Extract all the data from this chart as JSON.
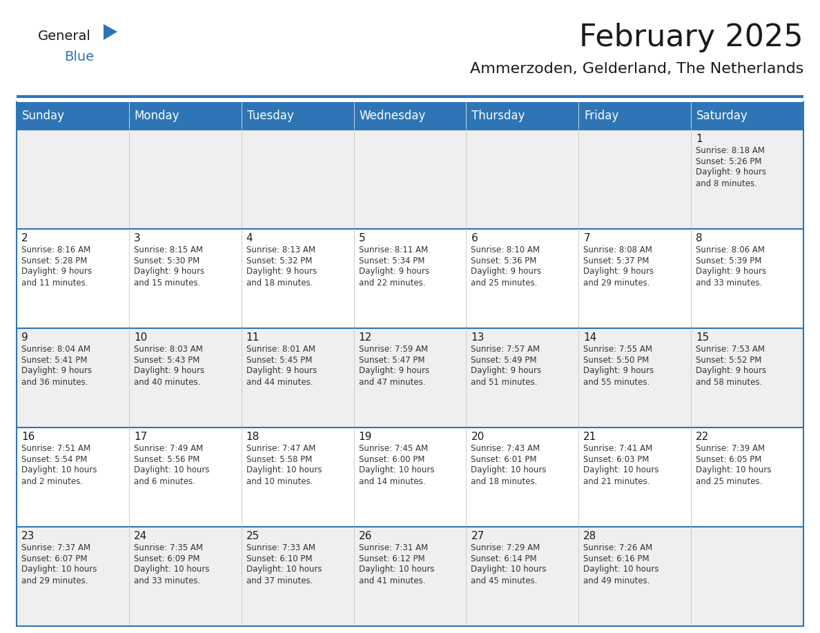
{
  "title": "February 2025",
  "subtitle": "Ammerzoden, Gelderland, The Netherlands",
  "header_color": "#2E75B6",
  "header_text_color": "#FFFFFF",
  "background_color": "#FFFFFF",
  "cell_bg_row0": "#EFEFEF",
  "cell_bg_row1": "#FFFFFF",
  "cell_bg_row2": "#EFEFEF",
  "cell_bg_row3": "#FFFFFF",
  "cell_bg_row4": "#EFEFEF",
  "border_color": "#2E75B6",
  "day_names": [
    "Sunday",
    "Monday",
    "Tuesday",
    "Wednesday",
    "Thursday",
    "Friday",
    "Saturday"
  ],
  "title_fontsize": 32,
  "subtitle_fontsize": 16,
  "header_fontsize": 12,
  "day_num_fontsize": 11,
  "cell_fontsize": 8.5,
  "logo_color1": "#1a1a1a",
  "logo_color2": "#2E75B6",
  "weeks": [
    [
      {
        "day": null,
        "text": ""
      },
      {
        "day": null,
        "text": ""
      },
      {
        "day": null,
        "text": ""
      },
      {
        "day": null,
        "text": ""
      },
      {
        "day": null,
        "text": ""
      },
      {
        "day": null,
        "text": ""
      },
      {
        "day": 1,
        "text": "Sunrise: 8:18 AM\nSunset: 5:26 PM\nDaylight: 9 hours\nand 8 minutes."
      }
    ],
    [
      {
        "day": 2,
        "text": "Sunrise: 8:16 AM\nSunset: 5:28 PM\nDaylight: 9 hours\nand 11 minutes."
      },
      {
        "day": 3,
        "text": "Sunrise: 8:15 AM\nSunset: 5:30 PM\nDaylight: 9 hours\nand 15 minutes."
      },
      {
        "day": 4,
        "text": "Sunrise: 8:13 AM\nSunset: 5:32 PM\nDaylight: 9 hours\nand 18 minutes."
      },
      {
        "day": 5,
        "text": "Sunrise: 8:11 AM\nSunset: 5:34 PM\nDaylight: 9 hours\nand 22 minutes."
      },
      {
        "day": 6,
        "text": "Sunrise: 8:10 AM\nSunset: 5:36 PM\nDaylight: 9 hours\nand 25 minutes."
      },
      {
        "day": 7,
        "text": "Sunrise: 8:08 AM\nSunset: 5:37 PM\nDaylight: 9 hours\nand 29 minutes."
      },
      {
        "day": 8,
        "text": "Sunrise: 8:06 AM\nSunset: 5:39 PM\nDaylight: 9 hours\nand 33 minutes."
      }
    ],
    [
      {
        "day": 9,
        "text": "Sunrise: 8:04 AM\nSunset: 5:41 PM\nDaylight: 9 hours\nand 36 minutes."
      },
      {
        "day": 10,
        "text": "Sunrise: 8:03 AM\nSunset: 5:43 PM\nDaylight: 9 hours\nand 40 minutes."
      },
      {
        "day": 11,
        "text": "Sunrise: 8:01 AM\nSunset: 5:45 PM\nDaylight: 9 hours\nand 44 minutes."
      },
      {
        "day": 12,
        "text": "Sunrise: 7:59 AM\nSunset: 5:47 PM\nDaylight: 9 hours\nand 47 minutes."
      },
      {
        "day": 13,
        "text": "Sunrise: 7:57 AM\nSunset: 5:49 PM\nDaylight: 9 hours\nand 51 minutes."
      },
      {
        "day": 14,
        "text": "Sunrise: 7:55 AM\nSunset: 5:50 PM\nDaylight: 9 hours\nand 55 minutes."
      },
      {
        "day": 15,
        "text": "Sunrise: 7:53 AM\nSunset: 5:52 PM\nDaylight: 9 hours\nand 58 minutes."
      }
    ],
    [
      {
        "day": 16,
        "text": "Sunrise: 7:51 AM\nSunset: 5:54 PM\nDaylight: 10 hours\nand 2 minutes."
      },
      {
        "day": 17,
        "text": "Sunrise: 7:49 AM\nSunset: 5:56 PM\nDaylight: 10 hours\nand 6 minutes."
      },
      {
        "day": 18,
        "text": "Sunrise: 7:47 AM\nSunset: 5:58 PM\nDaylight: 10 hours\nand 10 minutes."
      },
      {
        "day": 19,
        "text": "Sunrise: 7:45 AM\nSunset: 6:00 PM\nDaylight: 10 hours\nand 14 minutes."
      },
      {
        "day": 20,
        "text": "Sunrise: 7:43 AM\nSunset: 6:01 PM\nDaylight: 10 hours\nand 18 minutes."
      },
      {
        "day": 21,
        "text": "Sunrise: 7:41 AM\nSunset: 6:03 PM\nDaylight: 10 hours\nand 21 minutes."
      },
      {
        "day": 22,
        "text": "Sunrise: 7:39 AM\nSunset: 6:05 PM\nDaylight: 10 hours\nand 25 minutes."
      }
    ],
    [
      {
        "day": 23,
        "text": "Sunrise: 7:37 AM\nSunset: 6:07 PM\nDaylight: 10 hours\nand 29 minutes."
      },
      {
        "day": 24,
        "text": "Sunrise: 7:35 AM\nSunset: 6:09 PM\nDaylight: 10 hours\nand 33 minutes."
      },
      {
        "day": 25,
        "text": "Sunrise: 7:33 AM\nSunset: 6:10 PM\nDaylight: 10 hours\nand 37 minutes."
      },
      {
        "day": 26,
        "text": "Sunrise: 7:31 AM\nSunset: 6:12 PM\nDaylight: 10 hours\nand 41 minutes."
      },
      {
        "day": 27,
        "text": "Sunrise: 7:29 AM\nSunset: 6:14 PM\nDaylight: 10 hours\nand 45 minutes."
      },
      {
        "day": 28,
        "text": "Sunrise: 7:26 AM\nSunset: 6:16 PM\nDaylight: 10 hours\nand 49 minutes."
      },
      {
        "day": null,
        "text": ""
      }
    ]
  ],
  "row_bg_colors": [
    "#EFEFEF",
    "#FFFFFF",
    "#EFEFEF",
    "#FFFFFF",
    "#EFEFEF"
  ]
}
